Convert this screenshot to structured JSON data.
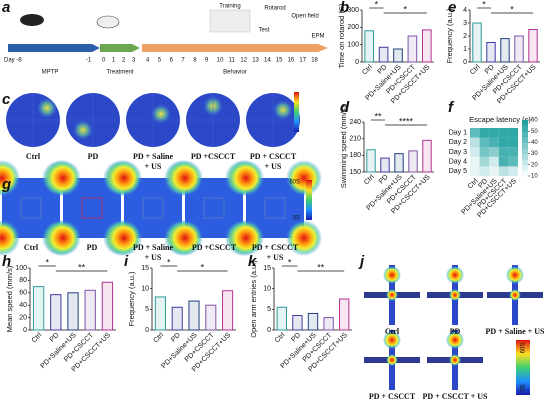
{
  "panel_labels": [
    "a",
    "b",
    "c",
    "d",
    "e",
    "f",
    "g",
    "h",
    "i",
    "j",
    "k"
  ],
  "timeline": {
    "days_mptp": [
      "Day -8",
      "-1"
    ],
    "days_treatment": [
      "0",
      "1",
      "2",
      "3"
    ],
    "days_behavior": [
      "4",
      "5",
      "6",
      "7",
      "8",
      "9",
      "10",
      "11",
      "12",
      "13",
      "14",
      "15",
      "16",
      "17",
      "18"
    ],
    "phases": [
      "MPTP",
      "Treatment",
      "Behavior"
    ],
    "tests": [
      "Training",
      "Test",
      "Rotarod",
      "Open field",
      "EPM"
    ]
  },
  "panel_c": {
    "labels": [
      [
        "Ctrl"
      ],
      [
        "PD"
      ],
      [
        "PD + Saline",
        "+ US"
      ],
      [
        "PD +CSCCT"
      ],
      [
        "PD + CSCCT",
        "+ US"
      ]
    ]
  },
  "panel_g": {
    "labels": [
      [
        "Ctrl"
      ],
      [
        "PD"
      ],
      [
        "PD + Saline",
        "+ US"
      ],
      [
        "PD +CSCCT"
      ],
      [
        "PD + CSCCT",
        "+ US"
      ]
    ],
    "colorbar": [
      "60S",
      "0S"
    ]
  },
  "panel_j": {
    "labels": [
      "Ctrl",
      "PD",
      "PD + Saline + US",
      "PD + CSCCT",
      "PD + CSCCT + US"
    ],
    "colorbar": [
      "60S",
      "0S"
    ]
  },
  "chart_data": [
    {
      "type": "bar",
      "y_label": "Time on rotarod (S)",
      "categories": [
        "Ctrl",
        "PD",
        "PD+Saline+US",
        "PD+CSCCT",
        "PD+CSCCT+US"
      ],
      "values": [
        180,
        85,
        75,
        150,
        185
      ],
      "colors": [
        "#2e9b9b",
        "#3c3ca0",
        "#1f3f7f",
        "#7d52a8",
        "#b3318f"
      ],
      "ylim": [
        0,
        300
      ],
      "yticks": [
        0,
        100,
        200,
        300
      ],
      "annotations": [
        {
          "text": "*",
          "between": [
            "Ctrl",
            "PD"
          ]
        },
        {
          "text": "*",
          "between": [
            "PD",
            "PD+CSCCT+US"
          ]
        }
      ]
    },
    {
      "type": "bar",
      "y_label": "Swimming speed (mm/s)",
      "categories": [
        "Ctrl",
        "PD",
        "PD+Saline+US",
        "PD+CSCCT",
        "PD+CSCCT+US"
      ],
      "values": [
        190,
        175,
        183,
        188,
        207
      ],
      "colors": [
        "#2e9b9b",
        "#3c3ca0",
        "#1f3f7f",
        "#7d52a8",
        "#b3318f"
      ],
      "ylim": [
        150,
        240
      ],
      "yticks": [
        150,
        180,
        210,
        240
      ],
      "annotations": [
        {
          "text": "**",
          "between": [
            "Ctrl",
            "PD"
          ]
        },
        {
          "text": "****",
          "between": [
            "PD",
            "PD+CSCCT+US"
          ]
        }
      ]
    },
    {
      "type": "bar",
      "y_label": "Frequency (a.u.)",
      "categories": [
        "Ctrl",
        "PD",
        "PD+Saline+US",
        "PD+CSCCT",
        "PD+CSCCT+US"
      ],
      "values": [
        3,
        1.5,
        1.8,
        2,
        2.5
      ],
      "colors": [
        "#2e9b9b",
        "#3c3ca0",
        "#1f3f7f",
        "#7d52a8",
        "#b3318f"
      ],
      "ylim": [
        0,
        4
      ],
      "yticks": [
        0,
        1,
        2,
        3,
        4
      ],
      "annotations": [
        {
          "text": "*",
          "between": [
            "Ctrl",
            "PD"
          ]
        },
        {
          "text": "*",
          "between": [
            "PD",
            "PD+CSCCT+US"
          ]
        }
      ]
    },
    {
      "type": "bar",
      "y_label": "Mean speed (mm/s)",
      "categories": [
        "Ctrl",
        "PD",
        "PD+Saline+US",
        "PD+CSCCT",
        "PD+CSCCT+US"
      ],
      "values": [
        70,
        57,
        60,
        64,
        77
      ],
      "colors": [
        "#2e9b9b",
        "#3c3ca0",
        "#1f3f7f",
        "#7d52a8",
        "#b3318f"
      ],
      "ylim": [
        0,
        100
      ],
      "yticks": [
        0,
        20,
        40,
        60,
        80,
        100
      ],
      "annotations": [
        {
          "text": "*",
          "between": [
            "Ctrl",
            "PD"
          ]
        },
        {
          "text": "**",
          "between": [
            "PD",
            "PD+CSCCT+US"
          ]
        }
      ]
    },
    {
      "type": "bar",
      "y_label": "Frequency (a.u.)",
      "categories": [
        "Ctrl",
        "PD",
        "PD+Saline+US",
        "PD+CSCCT",
        "PD+CSCCT+US"
      ],
      "values": [
        8,
        5.5,
        7,
        6,
        9.5
      ],
      "colors": [
        "#2e9b9b",
        "#3c3ca0",
        "#1f3f7f",
        "#7d52a8",
        "#b3318f"
      ],
      "ylim": [
        0,
        15
      ],
      "yticks": [
        0,
        5,
        10,
        15
      ],
      "annotations": [
        {
          "text": "*",
          "between": [
            "Ctrl",
            "PD"
          ]
        },
        {
          "text": "*",
          "between": [
            "PD",
            "PD+CSCCT+US"
          ]
        }
      ]
    },
    {
      "type": "bar",
      "y_label": "Open arm entries (a.u.)",
      "categories": [
        "Ctrl",
        "PD",
        "PD+Saline+US",
        "PD+CSCCT",
        "PD+CSCCT+US"
      ],
      "values": [
        5.5,
        3.5,
        4,
        3,
        7.5
      ],
      "colors": [
        "#2e9b9b",
        "#3c3ca0",
        "#1f3f7f",
        "#7d52a8",
        "#b3318f"
      ],
      "ylim": [
        0,
        15
      ],
      "yticks": [
        0,
        5,
        10,
        15
      ],
      "annotations": [
        {
          "text": "*",
          "between": [
            "Ctrl",
            "PD"
          ]
        },
        {
          "text": "**",
          "between": [
            "PD",
            "PD+CSCCT+US"
          ]
        }
      ]
    },
    {
      "type": "heatmap",
      "title": "Escape latency (s)",
      "rows": [
        "Day 1",
        "Day 2",
        "Day 3",
        "Day 4",
        "Day 5"
      ],
      "categories": [
        "Ctrl",
        "PD",
        "PD+Saline+US",
        "PD+CSCCT",
        "PD+CSCCT+US"
      ],
      "values": [
        [
          45,
          55,
          55,
          55,
          55
        ],
        [
          25,
          45,
          50,
          55,
          55
        ],
        [
          20,
          40,
          35,
          50,
          50
        ],
        [
          15,
          30,
          20,
          50,
          45
        ],
        [
          15,
          20,
          15,
          25,
          20
        ]
      ],
      "color": "#1a9e9e",
      "clim": [
        10,
        60
      ],
      "cticks": [
        10,
        20,
        30,
        40,
        50,
        60
      ]
    }
  ]
}
